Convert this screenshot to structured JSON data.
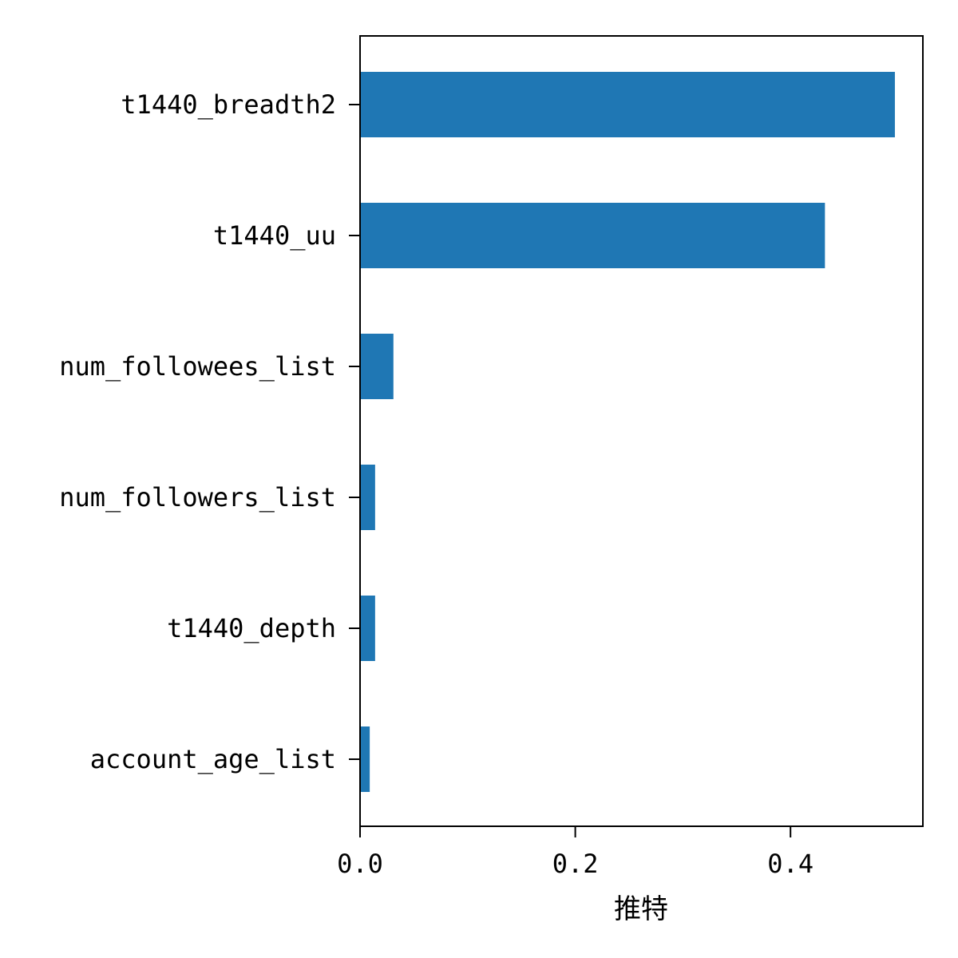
{
  "chart_data": {
    "type": "bar",
    "orientation": "horizontal",
    "title": "",
    "xlabel": "推特",
    "ylabel": "",
    "categories": [
      "t1440_breadth2",
      "t1440_uu",
      "num_followees_list",
      "num_followers_list",
      "t1440_depth",
      "account_age_list"
    ],
    "values": [
      0.497,
      0.432,
      0.031,
      0.014,
      0.014,
      0.009
    ],
    "xlim": [
      0,
      0.523
    ],
    "xticks": [
      0.0,
      0.2,
      0.4
    ],
    "xtick_labels": [
      "0.0",
      "0.2",
      "0.4"
    ],
    "grid": false,
    "bar_color": "#1f77b4"
  }
}
